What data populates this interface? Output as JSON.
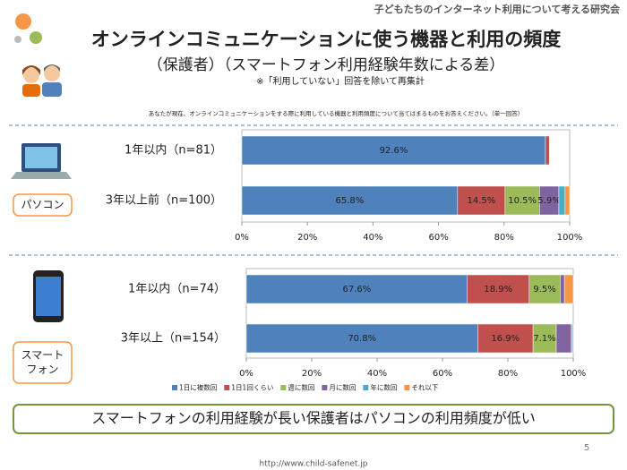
{
  "header": "子どもたちのインターネット利用について考える研究会",
  "title": "オンラインコミュニケーションに使う機器と利用の頻度",
  "subtitle": "（保護者）（スマートフォン利用経験年数による差）",
  "note": "※「利用していない」回答を除いて再集計",
  "question": "あなたが現在、オンラインコミュニケーションをする際に利用している機器と利用頻度について当てはまるものをお答えください。（単一回答）",
  "conclusion": "スマートフォンの利用経験が長い保護者はパソコンの利用頻度が低い",
  "page_number": "5",
  "url": "http://www.child-safenet.jp",
  "chart_data": {
    "type": "bar",
    "orientation": "horizontal",
    "stacked": true,
    "legend": "bottom",
    "series": [
      {
        "name": "1日に複数回",
        "color": "#4f81bd"
      },
      {
        "name": "1日1回くらい",
        "color": "#c0504d"
      },
      {
        "name": "週に数回",
        "color": "#9bbb59"
      },
      {
        "name": "月に数回",
        "color": "#8064a2"
      },
      {
        "name": "年に数回",
        "color": "#4bacc6"
      },
      {
        "name": "それ以下",
        "color": "#f79646"
      }
    ],
    "panels": [
      {
        "device": [
          "パソコン"
        ],
        "categories": [
          "1年以内（n=81）",
          "3年以上前（n=100）"
        ],
        "xlim": [
          0,
          100
        ],
        "xticks": [
          {
            "value": 0,
            "label": "0%"
          },
          {
            "value": 20,
            "label": "20%"
          },
          {
            "value": 40,
            "label": "40%"
          },
          {
            "value": 60,
            "label": "60%"
          },
          {
            "value": 80,
            "label": "80%"
          },
          {
            "value": 100,
            "label": "100%"
          }
        ],
        "series": [
          {
            "values": [
              92.6,
              65.8
            ],
            "value_labels": [
              "92.6%",
              "65.8%"
            ]
          },
          {
            "values": [
              1.2,
              14.5
            ],
            "value_labels": [
              null,
              "14.5%"
            ]
          },
          {
            "values": [
              0,
              10.5
            ],
            "value_labels": [
              null,
              "10.5%"
            ]
          },
          {
            "values": [
              0,
              5.9
            ],
            "value_labels": [
              null,
              "5.9%"
            ]
          },
          {
            "values": [
              0,
              1.9
            ],
            "value_labels": [
              null,
              null
            ]
          },
          {
            "values": [
              0,
              1.4
            ],
            "value_labels": [
              null,
              null
            ]
          }
        ]
      },
      {
        "device": [
          "スマート",
          "フォン"
        ],
        "categories": [
          "1年以内（n=74）",
          "3年以上（n=154）"
        ],
        "xlim": [
          0,
          100
        ],
        "xticks": [
          {
            "value": 0,
            "label": "0%"
          },
          {
            "value": 20,
            "label": "20%"
          },
          {
            "value": 40,
            "label": "40%"
          },
          {
            "value": 60,
            "label": "60%"
          },
          {
            "value": 80,
            "label": "80%"
          },
          {
            "value": 100,
            "label": "100%"
          }
        ],
        "series": [
          {
            "values": [
              67.6,
              70.8
            ],
            "value_labels": [
              "67.6%",
              "70.8%"
            ]
          },
          {
            "values": [
              18.9,
              16.9
            ],
            "value_labels": [
              "18.9%",
              "16.9%"
            ]
          },
          {
            "values": [
              9.5,
              7.1
            ],
            "value_labels": [
              "9.5%",
              "7.1%"
            ]
          },
          {
            "values": [
              1.3,
              4.6
            ],
            "value_labels": [
              null,
              null
            ]
          },
          {
            "values": [
              0,
              0.3
            ],
            "value_labels": [
              null,
              null
            ]
          },
          {
            "values": [
              2.7,
              0.3
            ],
            "value_labels": [
              null,
              null
            ]
          }
        ]
      }
    ]
  }
}
